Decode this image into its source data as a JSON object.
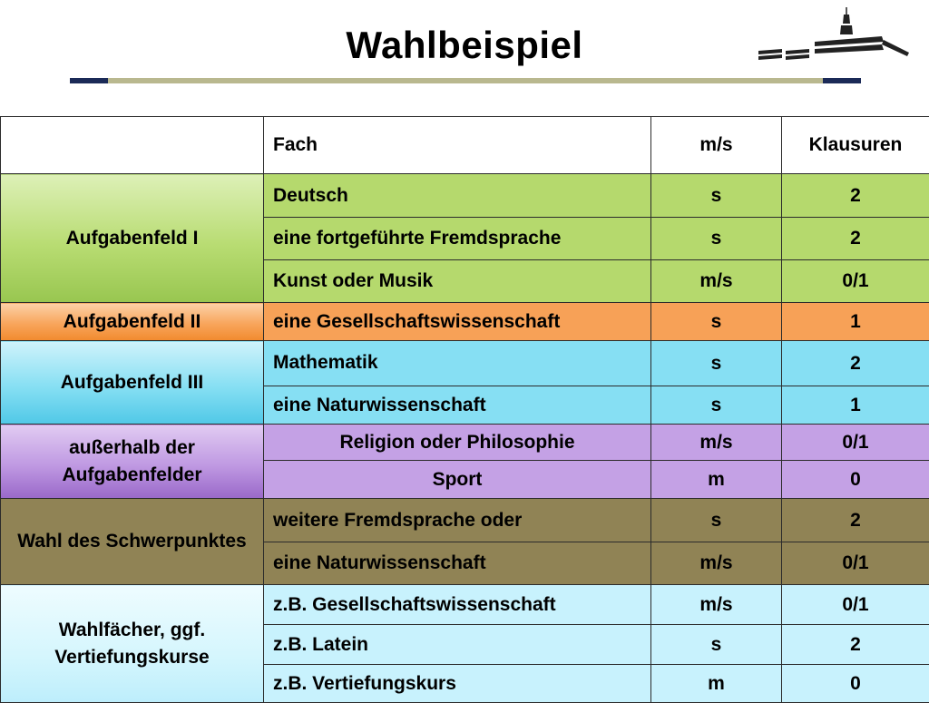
{
  "page": {
    "title": "Wahlbeispiel"
  },
  "table": {
    "headers": [
      "",
      "Fach",
      "m/s",
      "Klausuren"
    ],
    "groups": [
      {
        "label": "Aufgabenfeld I",
        "color": "#b5d96d",
        "rows": [
          {
            "fach": "Deutsch",
            "ms": "s",
            "klausuren": "2"
          },
          {
            "fach": "eine fortgeführte Fremdsprache",
            "ms": "s",
            "klausuren": "2"
          },
          {
            "fach": "Kunst oder Musik",
            "ms": "m/s",
            "klausuren": "0/1"
          }
        ]
      },
      {
        "label": "Aufgabenfeld II",
        "color": "#f7a157",
        "rows": [
          {
            "fach": "eine Gesellschaftswissenschaft",
            "ms": "s",
            "klausuren": "1"
          }
        ]
      },
      {
        "label": "Aufgabenfeld III",
        "color": "#86dff3",
        "rows": [
          {
            "fach": "Mathematik",
            "ms": "s",
            "klausuren": "2"
          },
          {
            "fach": "eine Naturwissenschaft",
            "ms": "s",
            "klausuren": "1"
          }
        ]
      },
      {
        "label": "außerhalb der Aufgabenfelder",
        "color": "#c4a1e5",
        "rows": [
          {
            "fach": "Religion oder Philosophie",
            "ms": "m/s",
            "klausuren": "0/1"
          },
          {
            "fach": "Sport",
            "ms": "m",
            "klausuren": "0"
          }
        ]
      },
      {
        "label": "Wahl des Schwerpunktes",
        "color": "#908355",
        "rows": [
          {
            "fach": "weitere Fremdsprache oder",
            "ms": "s",
            "klausuren": "2"
          },
          {
            "fach": "eine Naturwissenschaft",
            "ms": "m/s",
            "klausuren": "0/1"
          }
        ]
      },
      {
        "label": "Wahlfächer, ggf. Vertiefungskurse",
        "color": "#c8f2fd",
        "rows": [
          {
            "fach": "z.B. Gesellschaftswissenschaft",
            "ms": "m/s",
            "klausuren": "0/1"
          },
          {
            "fach": "z.B. Latein",
            "ms": "s",
            "klausuren": "2"
          },
          {
            "fach": "z.B. Vertiefungskurs",
            "ms": "m",
            "klausuren": "0"
          }
        ]
      }
    ]
  }
}
